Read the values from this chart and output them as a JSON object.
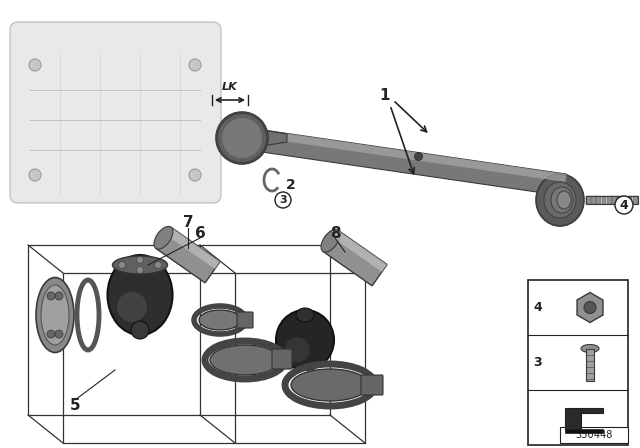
{
  "bg_color": "#ffffff",
  "diagram_id": "350448",
  "line_color": "#222222",
  "gray_dark": "#3a3a3a",
  "gray_mid": "#666666",
  "gray_light": "#aaaaaa",
  "gray_lighter": "#cccccc",
  "gray_very_light": "#e8e8e8",
  "shaft_color": "#787878",
  "shaft_highlight": "#b0b0b0",
  "boot_color": "#2a2a2a",
  "clamp_color": "#555555",
  "flange_color": "#8a8a8a"
}
